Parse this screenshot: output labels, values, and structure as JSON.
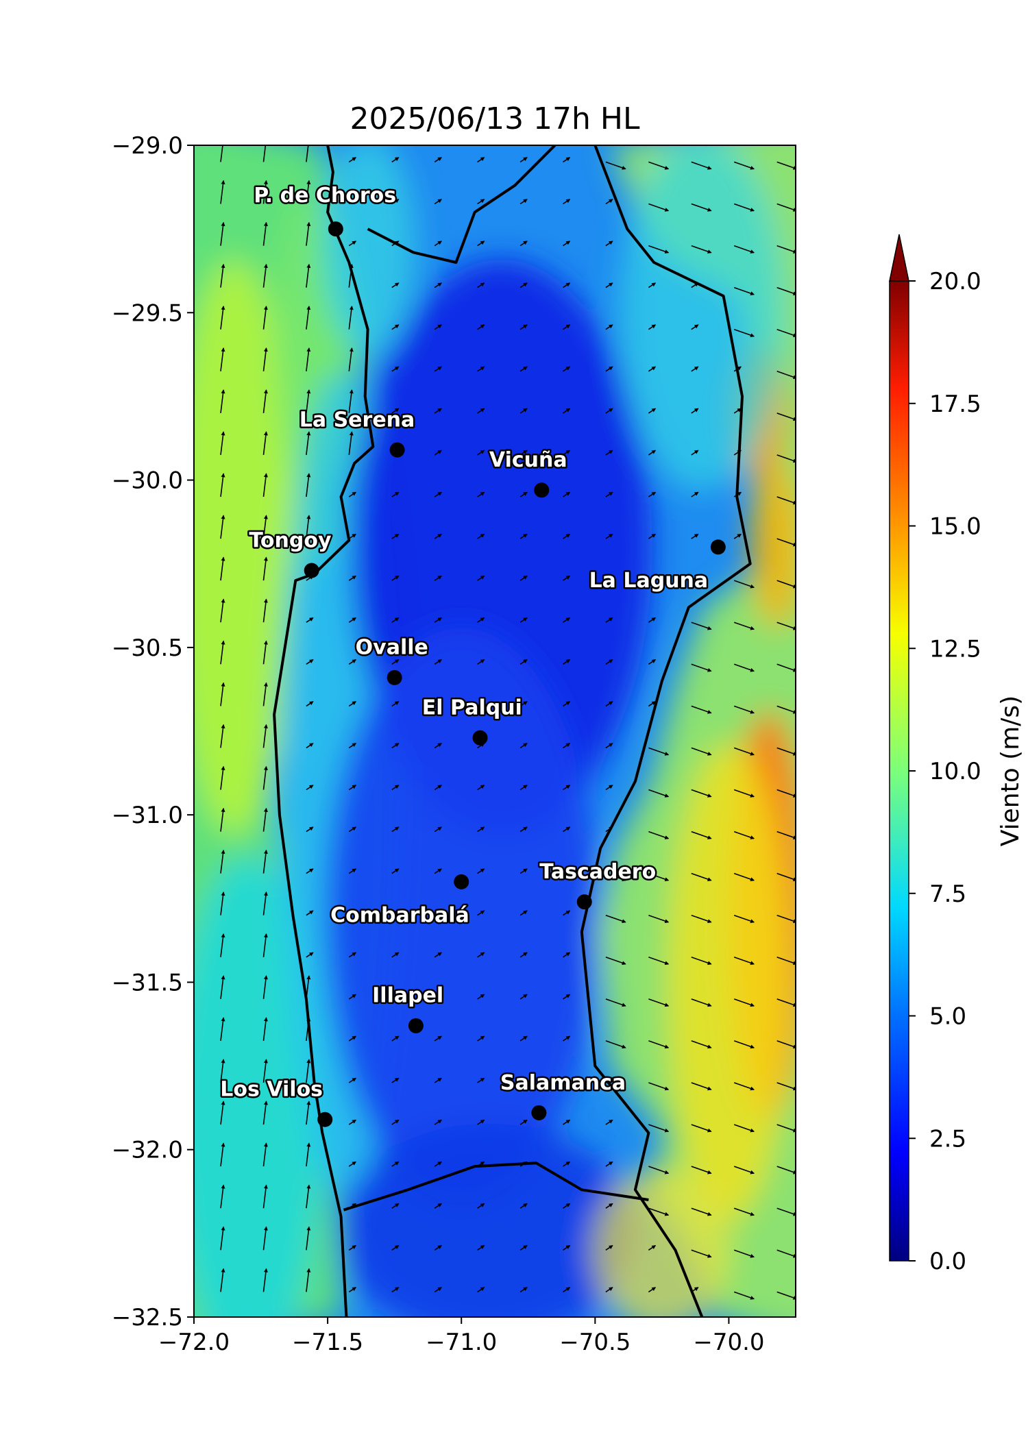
{
  "title": "2025/06/13 17h HL",
  "map": {
    "lon_range": [
      -72.0,
      -69.75
    ],
    "lat_range": [
      -32.5,
      -29.0
    ],
    "x_ticks": [
      {
        "value": -72.0,
        "label": "−72.0"
      },
      {
        "value": -71.5,
        "label": "−71.5"
      },
      {
        "value": -71.0,
        "label": "−71.0"
      },
      {
        "value": -70.5,
        "label": "−70.5"
      },
      {
        "value": -70.0,
        "label": "−70.0"
      }
    ],
    "y_ticks": [
      {
        "value": -29.0,
        "label": "−29.0"
      },
      {
        "value": -29.5,
        "label": "−29.5"
      },
      {
        "value": -30.0,
        "label": "−30.0"
      },
      {
        "value": -30.5,
        "label": "−30.5"
      },
      {
        "value": -31.0,
        "label": "−31.0"
      },
      {
        "value": -31.5,
        "label": "−31.5"
      },
      {
        "value": -32.0,
        "label": "−32.0"
      },
      {
        "value": -32.5,
        "label": "−32.5"
      }
    ],
    "field": "wind speed (m/s), filled contours with wind vectors",
    "wind_pattern": {
      "ocean": "southerly ~8-11 m/s",
      "interior_valleys": "weak 1-4 m/s",
      "andes_east": "westerly/northwesterly 10-16 m/s"
    }
  },
  "colorbar": {
    "label": "Viento (m/s)",
    "range": [
      0.0,
      20.0
    ],
    "extend": "max",
    "ticks": [
      {
        "value": 0.0,
        "label": "0.0"
      },
      {
        "value": 2.5,
        "label": "2.5"
      },
      {
        "value": 5.0,
        "label": "5.0"
      },
      {
        "value": 7.5,
        "label": "7.5"
      },
      {
        "value": 10.0,
        "label": "10.0"
      },
      {
        "value": 12.5,
        "label": "12.5"
      },
      {
        "value": 15.0,
        "label": "15.0"
      },
      {
        "value": 17.5,
        "label": "17.5"
      },
      {
        "value": 20.0,
        "label": "20.0"
      }
    ],
    "colormap": "jet"
  },
  "cities": [
    {
      "name": "P. de Choros",
      "lon": -71.47,
      "lat": -29.25,
      "label_dx": -0.04,
      "label_dy": 0.08,
      "anchor": "middle"
    },
    {
      "name": "La Serena",
      "lon": -71.24,
      "lat": -29.91,
      "label_dx": -0.15,
      "label_dy": 0.07,
      "anchor": "middle"
    },
    {
      "name": "Vicuña",
      "lon": -70.7,
      "lat": -30.03,
      "label_dx": -0.05,
      "label_dy": 0.07,
      "anchor": "middle"
    },
    {
      "name": "Tongoy",
      "lon": -71.56,
      "lat": -30.27,
      "label_dx": -0.08,
      "label_dy": 0.07,
      "anchor": "middle"
    },
    {
      "name": "La Laguna",
      "lon": -70.04,
      "lat": -30.2,
      "label_dx": -0.26,
      "label_dy": -0.12,
      "anchor": "middle"
    },
    {
      "name": "Ovalle",
      "lon": -71.25,
      "lat": -30.59,
      "label_dx": -0.01,
      "label_dy": 0.07,
      "anchor": "middle"
    },
    {
      "name": "El Palqui",
      "lon": -70.93,
      "lat": -30.77,
      "label_dx": -0.03,
      "label_dy": 0.07,
      "anchor": "middle"
    },
    {
      "name": "Tascadero",
      "lon": -70.54,
      "lat": -31.26,
      "label_dx": 0.05,
      "label_dy": 0.07,
      "anchor": "middle"
    },
    {
      "name": "Combarbalá",
      "lon": -71.0,
      "lat": -31.2,
      "label_dx": -0.23,
      "label_dy": -0.12,
      "anchor": "middle"
    },
    {
      "name": "Illapel",
      "lon": -71.17,
      "lat": -31.63,
      "label_dx": -0.03,
      "label_dy": 0.07,
      "anchor": "middle"
    },
    {
      "name": "Los Vilos",
      "lon": -71.51,
      "lat": -31.91,
      "label_dx": -0.2,
      "label_dy": 0.07,
      "anchor": "middle"
    },
    {
      "name": "Salamanca",
      "lon": -70.71,
      "lat": -31.89,
      "label_dx": 0.09,
      "label_dy": 0.07,
      "anchor": "middle"
    }
  ]
}
